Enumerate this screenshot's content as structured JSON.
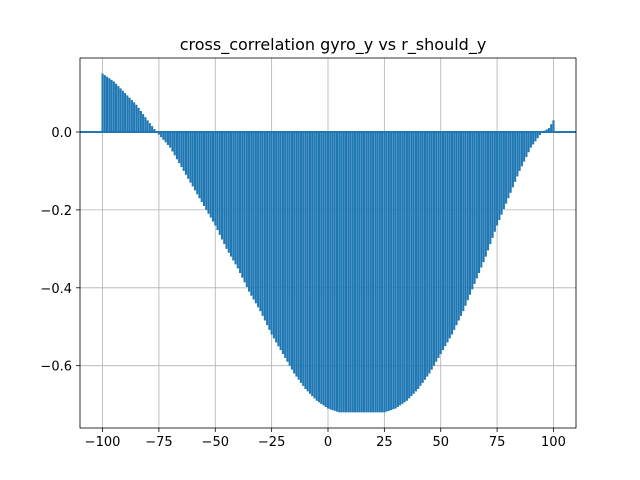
{
  "chart_data": {
    "type": "bar",
    "title": "cross_correlation gyro_y vs r_should_y",
    "xlabel": "",
    "ylabel": "",
    "xlim": [
      -110,
      110
    ],
    "ylim": [
      -0.76,
      0.19
    ],
    "grid": true,
    "x_ticks": [
      -100,
      -75,
      -50,
      -25,
      0,
      25,
      50,
      75,
      100
    ],
    "x_tick_labels": [
      "−100",
      "−75",
      "−50",
      "−25",
      "0",
      "25",
      "50",
      "75",
      "100"
    ],
    "y_ticks": [
      0.0,
      -0.2,
      -0.4,
      -0.6
    ],
    "y_tick_labels": [
      "0.0",
      "−0.2",
      "−0.4",
      "−0.6"
    ],
    "series": [
      {
        "color": "#1f77b4",
        "x": [
          -100,
          -95,
          -90,
          -85,
          -80,
          -76,
          -70,
          -65,
          -60,
          -55,
          -50,
          -45,
          -40,
          -35,
          -30,
          -25,
          -20,
          -15,
          -10,
          -5,
          0,
          5,
          10,
          15,
          20,
          25,
          30,
          35,
          40,
          45,
          50,
          55,
          60,
          65,
          70,
          75,
          80,
          85,
          90,
          95,
          98,
          100
        ],
        "values": [
          0.15,
          0.13,
          0.1,
          0.07,
          0.03,
          0.0,
          -0.04,
          -0.09,
          -0.14,
          -0.19,
          -0.24,
          -0.3,
          -0.35,
          -0.41,
          -0.46,
          -0.52,
          -0.57,
          -0.62,
          -0.66,
          -0.69,
          -0.71,
          -0.72,
          -0.72,
          -0.72,
          -0.72,
          -0.72,
          -0.71,
          -0.69,
          -0.66,
          -0.62,
          -0.57,
          -0.52,
          -0.46,
          -0.39,
          -0.32,
          -0.24,
          -0.17,
          -0.1,
          -0.04,
          0.0,
          0.01,
          0.03
        ]
      }
    ]
  }
}
